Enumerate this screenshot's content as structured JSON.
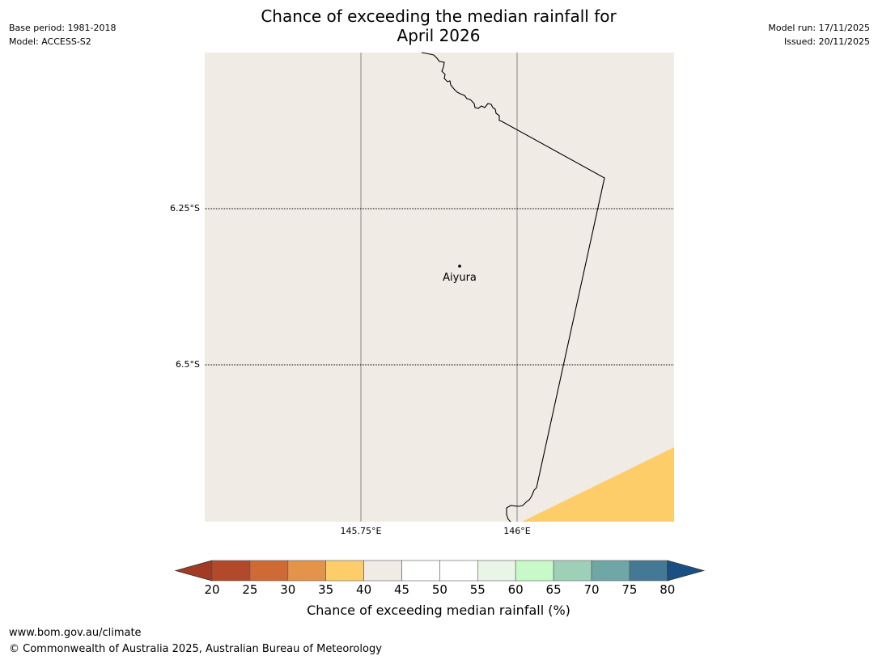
{
  "title": {
    "line1": "Chance of exceeding the median rainfall for",
    "line2": "April 2026"
  },
  "meta": {
    "base_period": "Base period: 1981-2018",
    "model": "Model: ACCESS-S2",
    "model_run": "Model run: 17/11/2025",
    "issued": "Issued: 20/11/2025"
  },
  "map": {
    "background_color": "#f0ebe5",
    "latitude_labels": [
      "6.25°S",
      "6.5°S"
    ],
    "longitude_labels": [
      "145.75°E",
      "146°E"
    ],
    "place": {
      "name": "Aiyura"
    },
    "corner_fill_category": "35-40",
    "corner_fill_color": "#fdcd69"
  },
  "colorbar": {
    "ticks": [
      "20",
      "25",
      "30",
      "35",
      "40",
      "45",
      "50",
      "55",
      "60",
      "65",
      "70",
      "75",
      "80"
    ],
    "colors": [
      "#b2492a",
      "#d06a35",
      "#e3944a",
      "#fdcd69",
      "#f0ebe5",
      "#ffffff",
      "#ffffff",
      "#e9f5e6",
      "#c8fac9",
      "#9ed0b8",
      "#6fa6a6",
      "#447996"
    ],
    "under_color": "#a33a24",
    "over_color": "#1a4f84",
    "label": "Chance of exceeding median rainfall (%)"
  },
  "footer": {
    "url": "www.bom.gov.au/climate",
    "copyright": "© Commonwealth of Australia 2025, Australian Bureau of Meteorology"
  }
}
